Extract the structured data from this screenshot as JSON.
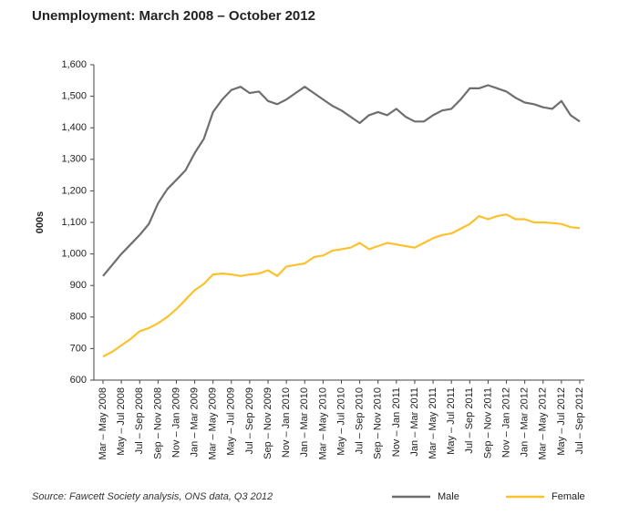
{
  "chart_data": {
    "type": "line",
    "title": "Unemployment: March 2008 – October 2012",
    "ylabel": "000s",
    "source": "Source: Fawcett Society analysis, ONS data, Q3 2012",
    "categories": [
      "Mar – May 2008",
      null,
      "May – Jul 2008",
      null,
      "Jul – Sep 2008",
      null,
      "Sep – Nov 2008",
      null,
      "Nov – Jan 2009",
      null,
      "Jan – Mar 2009",
      null,
      "Mar – May 2009",
      null,
      "May – Jul 2009",
      null,
      "Jul – Sep 2009",
      null,
      "Sep – Nov 2009",
      null,
      "Nov – Jan 2010",
      null,
      "Jan – Mar 2010",
      null,
      "Mar – May 2010",
      null,
      "May – Jul 2010",
      null,
      "Jul – Sep 2010",
      null,
      "Sep – Nov 2010",
      null,
      "Nov – Jan 2011",
      null,
      "Jan – Mar 2011",
      null,
      "Mar – May 2011",
      null,
      "May – Jul 2011",
      null,
      "Jul – Sep 2011",
      null,
      "Sep – Nov 2011",
      null,
      "Nov – Jan 2012",
      null,
      "Jan – Mar 2012",
      null,
      "Mar – May 2012",
      null,
      "May – Jul 2012",
      null,
      "Jul – Sep 2012"
    ],
    "series": [
      {
        "name": "Male",
        "color": "#6d6e70",
        "values": [
          930,
          965,
          1000,
          1030,
          1060,
          1095,
          1160,
          1205,
          1235,
          1265,
          1320,
          1365,
          1450,
          1490,
          1520,
          1530,
          1510,
          1515,
          1485,
          1475,
          1490,
          1510,
          1530,
          1510,
          1490,
          1470,
          1455,
          1435,
          1415,
          1440,
          1450,
          1440,
          1460,
          1435,
          1420,
          1420,
          1440,
          1455,
          1460,
          1490,
          1525,
          1525,
          1535,
          1525,
          1515,
          1495,
          1480,
          1475,
          1465,
          1460,
          1485,
          1440,
          1420
        ]
      },
      {
        "name": "Female",
        "color": "#fdc12b",
        "values": [
          675,
          690,
          710,
          730,
          755,
          765,
          780,
          800,
          825,
          855,
          885,
          905,
          935,
          938,
          935,
          930,
          935,
          938,
          948,
          930,
          960,
          965,
          970,
          990,
          995,
          1010,
          1015,
          1020,
          1035,
          1015,
          1025,
          1035,
          1030,
          1025,
          1020,
          1035,
          1050,
          1060,
          1065,
          1080,
          1095,
          1120,
          1110,
          1120,
          1125,
          1110,
          1110,
          1100,
          1100,
          1098,
          1095,
          1085,
          1082
        ]
      }
    ],
    "ylim": [
      600,
      1600
    ],
    "yticks": [
      600,
      700,
      800,
      900,
      {
        "value": 1000,
        "label": "1,000"
      },
      {
        "value": 1100,
        "label": "1,100"
      },
      {
        "value": 1200,
        "label": "1,200"
      },
      {
        "value": 1300,
        "label": "1,300"
      },
      {
        "value": 1400,
        "label": "1,400"
      },
      {
        "value": 1500,
        "label": "1,500"
      },
      {
        "value": 1600,
        "label": "1,600"
      }
    ],
    "legend": "bottom-right",
    "grid": false
  }
}
